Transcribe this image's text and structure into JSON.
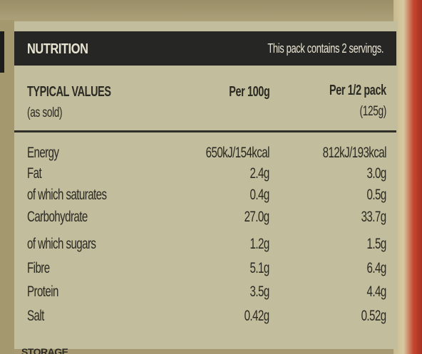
{
  "label": {
    "title": "NUTRITION",
    "servings_note": "This pack contains 2 servings.",
    "col_label_1": "TYPICAL VALUES",
    "col_label_2": "(as sold)",
    "col_per100": "Per 100g",
    "col_perhalf_1": "Per 1/2 pack",
    "col_perhalf_2": "(125g)",
    "rows": [
      {
        "name": "Energy",
        "per100": "650kJ/154kcal",
        "perhalf": "812kJ/193kcal"
      },
      {
        "name": "Fat",
        "per100": "2.4g",
        "perhalf": "3.0g"
      },
      {
        "name": "of which saturates",
        "per100": "0.4g",
        "perhalf": "0.5g"
      },
      {
        "name": "Carbohydrate",
        "per100": "27.0g",
        "perhalf": "33.7g"
      },
      {
        "name": "of which sugars",
        "per100": "1.2g",
        "perhalf": "1.5g"
      },
      {
        "name": "Fibre",
        "per100": "5.1g",
        "perhalf": "6.4g"
      },
      {
        "name": "Protein",
        "per100": "3.5g",
        "perhalf": "4.4g"
      },
      {
        "name": "Salt",
        "per100": "0.42g",
        "perhalf": "0.52g"
      }
    ],
    "footer_partial": "STORAGE"
  },
  "colors": {
    "panel": "#c2bd9c",
    "header_bar": "#262624",
    "text": "#2b2a23",
    "packaging_red": "#c4472f"
  }
}
